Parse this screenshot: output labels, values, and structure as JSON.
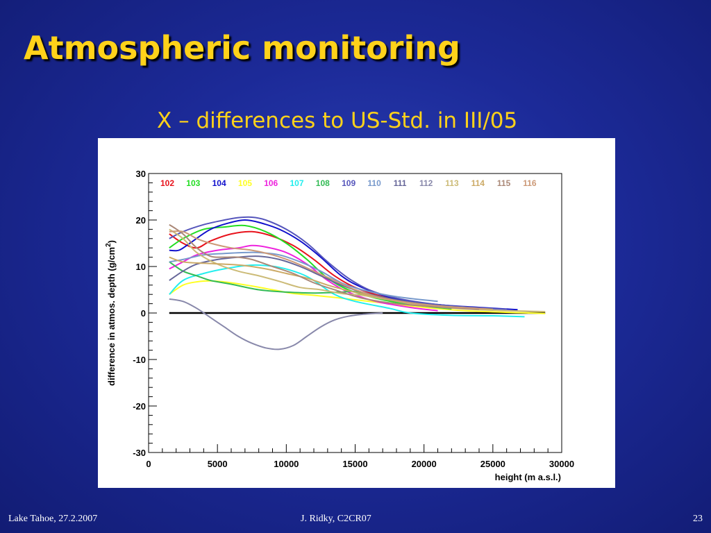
{
  "slide": {
    "title": "Atmospheric monitoring",
    "subtitle": "X – differences to US-Std. in III/05",
    "footer_left": "Lake Tahoe, 27.2.2007",
    "footer_center": "J. Ridky, C2CR07",
    "footer_right": "23",
    "background_color": "#1c2a98",
    "title_color": "#ffd21a"
  },
  "chart_data": {
    "type": "line",
    "xlabel": "height (m a.s.l.)",
    "ylabel": "difference in atmos. depth (g/cm",
    "ylabel_superscript": "2",
    "ylabel_suffix": ")",
    "xlim": [
      0,
      30000
    ],
    "ylim": [
      -30,
      30
    ],
    "x_ticks": [
      0,
      5000,
      10000,
      15000,
      20000,
      25000,
      30000
    ],
    "x_tick_labels": [
      "0",
      "5000",
      "10000",
      "15000",
      "20000",
      "25000",
      "30000"
    ],
    "y_ticks": [
      -30,
      -20,
      -10,
      0,
      10,
      20,
      30
    ],
    "y_tick_labels": [
      "-30",
      "-20",
      "-10",
      "0",
      "10",
      "20",
      "30"
    ],
    "grid": false,
    "legend_position": "top",
    "reference_line": {
      "y": 0,
      "x_from": 1500,
      "x_to": 28800,
      "color": "#000000"
    },
    "series": [
      {
        "name": "102",
        "color": "#e8121b",
        "points": [
          [
            1500,
            17
          ],
          [
            2500,
            15
          ],
          [
            3500,
            14
          ],
          [
            4500,
            15.5
          ],
          [
            6000,
            17
          ],
          [
            7500,
            17.5
          ],
          [
            9000,
            16.5
          ],
          [
            10500,
            14.5
          ],
          [
            12000,
            11.5
          ],
          [
            13500,
            8
          ],
          [
            15000,
            5.5
          ],
          [
            17000,
            3.5
          ],
          [
            19000,
            2
          ],
          [
            21500,
            0.8
          ]
        ]
      },
      {
        "name": "103",
        "color": "#22dd22",
        "points": [
          [
            1500,
            14
          ],
          [
            2500,
            16
          ],
          [
            4000,
            18
          ],
          [
            5500,
            18.5
          ],
          [
            7000,
            18.8
          ],
          [
            8500,
            17.5
          ],
          [
            10000,
            15
          ],
          [
            11500,
            11.5
          ],
          [
            13000,
            7.5
          ],
          [
            14500,
            5
          ],
          [
            16500,
            3.2
          ],
          [
            19000,
            1.8
          ],
          [
            22000,
            0.9
          ]
        ]
      },
      {
        "name": "104",
        "color": "#1010cc",
        "points": [
          [
            1500,
            13.5
          ],
          [
            2200,
            13.5
          ],
          [
            3000,
            15
          ],
          [
            4500,
            18
          ],
          [
            6000,
            19.5
          ],
          [
            7000,
            20
          ],
          [
            8000,
            19.5
          ],
          [
            9500,
            18
          ],
          [
            11000,
            15.5
          ],
          [
            12500,
            12
          ],
          [
            14000,
            8
          ],
          [
            15500,
            5.5
          ],
          [
            18000,
            3
          ],
          [
            21000,
            1.8
          ],
          [
            24000,
            1.2
          ],
          [
            26800,
            0.7
          ]
        ]
      },
      {
        "name": "105",
        "color": "#ffff22",
        "points": [
          [
            1500,
            4
          ],
          [
            2500,
            6
          ],
          [
            3500,
            6.7
          ],
          [
            4500,
            6.9
          ],
          [
            6000,
            6.5
          ],
          [
            7500,
            5.8
          ],
          [
            9000,
            5
          ],
          [
            10500,
            4.2
          ],
          [
            12000,
            3.8
          ],
          [
            14000,
            3.2
          ],
          [
            16000,
            2.5
          ],
          [
            19000,
            1.5
          ],
          [
            23000,
            0.5
          ],
          [
            28800,
            -0.1
          ]
        ]
      },
      {
        "name": "106",
        "color": "#ee22dd",
        "points": [
          [
            1500,
            9.5
          ],
          [
            2500,
            11
          ],
          [
            3500,
            12.5
          ],
          [
            5000,
            13.5
          ],
          [
            6500,
            14
          ],
          [
            7500,
            14.5
          ],
          [
            8500,
            14.2
          ],
          [
            10000,
            13
          ],
          [
            11500,
            10.5
          ],
          [
            13000,
            7
          ],
          [
            14500,
            4.5
          ],
          [
            16500,
            2.5
          ],
          [
            19000,
            1.2
          ],
          [
            21000,
            0.5
          ]
        ]
      },
      {
        "name": "107",
        "color": "#22eeee",
        "points": [
          [
            1500,
            4
          ],
          [
            2500,
            7
          ],
          [
            4000,
            8.5
          ],
          [
            5500,
            9.5
          ],
          [
            7000,
            10.2
          ],
          [
            8000,
            10.3
          ],
          [
            9500,
            9.8
          ],
          [
            11000,
            8.5
          ],
          [
            12000,
            7
          ],
          [
            13500,
            4
          ],
          [
            15000,
            2.5
          ],
          [
            17500,
            1
          ],
          [
            19000,
            0
          ],
          [
            22000,
            -0.5
          ],
          [
            25000,
            -0.6
          ],
          [
            27300,
            -0.8
          ]
        ]
      },
      {
        "name": "108",
        "color": "#33bb55",
        "points": [
          [
            1500,
            11
          ],
          [
            2500,
            9
          ],
          [
            3500,
            8
          ],
          [
            4500,
            7
          ],
          [
            6000,
            6.2
          ],
          [
            8000,
            5
          ],
          [
            10000,
            4.5
          ],
          [
            12000,
            4.3
          ],
          [
            14000,
            4.5
          ],
          [
            15000,
            4.6
          ],
          [
            16500,
            3.5
          ],
          [
            18000,
            2.5
          ],
          [
            20000,
            1.5
          ],
          [
            22000,
            0.9
          ]
        ]
      },
      {
        "name": "109",
        "color": "#5555bb",
        "points": [
          [
            1500,
            16
          ],
          [
            2500,
            17.5
          ],
          [
            4000,
            19
          ],
          [
            5500,
            20
          ],
          [
            6500,
            20.5
          ],
          [
            7500,
            20.6
          ],
          [
            8500,
            20
          ],
          [
            10000,
            18
          ],
          [
            11500,
            15
          ],
          [
            13000,
            11
          ],
          [
            14500,
            7.5
          ],
          [
            16000,
            5
          ],
          [
            18000,
            3.2
          ],
          [
            21000,
            1.8
          ],
          [
            24000,
            1.1
          ],
          [
            26000,
            0.8
          ]
        ]
      },
      {
        "name": "110",
        "color": "#7799cc",
        "points": [
          [
            1500,
            11
          ],
          [
            2500,
            11.5
          ],
          [
            4000,
            12.5
          ],
          [
            5500,
            12.8
          ],
          [
            7000,
            13
          ],
          [
            8000,
            13
          ],
          [
            9500,
            12.5
          ],
          [
            11000,
            11
          ],
          [
            12500,
            9
          ],
          [
            14000,
            6.5
          ],
          [
            15500,
            5
          ],
          [
            18000,
            3.5
          ],
          [
            21000,
            2.5
          ]
        ]
      },
      {
        "name": "111",
        "color": "#666699",
        "points": [
          [
            1500,
            7
          ],
          [
            2500,
            9
          ],
          [
            3500,
            10.5
          ],
          [
            5000,
            11.5
          ],
          [
            6500,
            12
          ],
          [
            8000,
            12.2
          ],
          [
            9500,
            11.5
          ],
          [
            11000,
            10
          ],
          [
            12500,
            8
          ],
          [
            14000,
            6
          ],
          [
            15500,
            4.5
          ],
          [
            18000,
            2.8
          ],
          [
            21000,
            1.6
          ],
          [
            24000,
            1
          ]
        ]
      },
      {
        "name": "112",
        "color": "#8888aa",
        "points": [
          [
            1500,
            3
          ],
          [
            2500,
            2.5
          ],
          [
            3500,
            1
          ],
          [
            4500,
            -1
          ],
          [
            5500,
            -3
          ],
          [
            6500,
            -5
          ],
          [
            7500,
            -6.5
          ],
          [
            8500,
            -7.5
          ],
          [
            9500,
            -7.8
          ],
          [
            10500,
            -7
          ],
          [
            11500,
            -5
          ],
          [
            12500,
            -3
          ],
          [
            13500,
            -1.5
          ],
          [
            14500,
            -0.7
          ],
          [
            15500,
            -0.3
          ],
          [
            17000,
            0
          ]
        ]
      },
      {
        "name": "113",
        "color": "#ccbb77",
        "points": [
          [
            1500,
            18
          ],
          [
            2500,
            16
          ],
          [
            3500,
            13
          ],
          [
            5000,
            10.5
          ],
          [
            6500,
            9
          ],
          [
            8000,
            8
          ],
          [
            9500,
            6.8
          ],
          [
            11000,
            5.5
          ],
          [
            12500,
            5
          ],
          [
            14000,
            4.2
          ],
          [
            15500,
            3.8
          ],
          [
            17500,
            2.8
          ],
          [
            20000,
            1.6
          ],
          [
            24000,
            0.7
          ],
          [
            28800,
            0.3
          ]
        ]
      },
      {
        "name": "114",
        "color": "#ccaa66",
        "points": [
          [
            1500,
            12
          ],
          [
            2500,
            11
          ],
          [
            4000,
            10.7
          ],
          [
            5500,
            10.5
          ],
          [
            7000,
            10.2
          ],
          [
            8500,
            9.5
          ],
          [
            10000,
            8.5
          ],
          [
            11500,
            7.5
          ],
          [
            13000,
            6
          ],
          [
            14500,
            4.8
          ],
          [
            16500,
            3.5
          ],
          [
            19000,
            2.2
          ],
          [
            22000,
            1.3
          ],
          [
            25000,
            0.8
          ]
        ]
      },
      {
        "name": "115",
        "color": "#aa8877",
        "points": [
          [
            1500,
            19
          ],
          [
            2500,
            17
          ],
          [
            3500,
            14
          ],
          [
            4500,
            12.2
          ],
          [
            5500,
            12
          ],
          [
            6500,
            12
          ],
          [
            7500,
            11.5
          ],
          [
            9000,
            10
          ],
          [
            10500,
            8.5
          ],
          [
            12000,
            6.5
          ],
          [
            13500,
            5
          ],
          [
            15500,
            3.2
          ],
          [
            18000,
            2
          ],
          [
            21000,
            1.3
          ],
          [
            24000,
            0.8
          ]
        ]
      },
      {
        "name": "116",
        "color": "#cc9977",
        "points": [
          [
            1500,
            17.5
          ],
          [
            2500,
            17.5
          ],
          [
            3500,
            16
          ],
          [
            4500,
            15
          ],
          [
            6000,
            14
          ],
          [
            7500,
            13.5
          ],
          [
            9000,
            12.5
          ],
          [
            10500,
            11
          ],
          [
            12000,
            9
          ],
          [
            13500,
            7
          ],
          [
            15000,
            5
          ],
          [
            17000,
            3.2
          ],
          [
            19500,
            2
          ],
          [
            22000,
            1.3
          ],
          [
            24500,
            0.9
          ]
        ]
      }
    ]
  }
}
